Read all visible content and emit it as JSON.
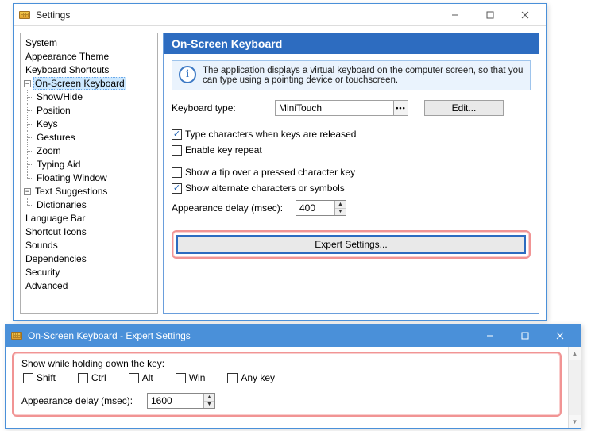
{
  "win1": {
    "title": "Settings",
    "tree": {
      "items": [
        {
          "label": "System",
          "expandable": false
        },
        {
          "label": "Appearance Theme",
          "expandable": false
        },
        {
          "label": "Keyboard Shortcuts",
          "expandable": false
        },
        {
          "label": "On-Screen Keyboard",
          "expandable": true,
          "expanded": true,
          "selected": true,
          "children": [
            {
              "label": "Show/Hide"
            },
            {
              "label": "Position"
            },
            {
              "label": "Keys"
            },
            {
              "label": "Gestures"
            },
            {
              "label": "Zoom"
            },
            {
              "label": "Typing Aid"
            },
            {
              "label": "Floating Window"
            }
          ]
        },
        {
          "label": "Text Suggestions",
          "expandable": true,
          "expanded": true,
          "children": [
            {
              "label": "Dictionaries"
            }
          ]
        },
        {
          "label": "Language Bar",
          "expandable": false
        },
        {
          "label": "Shortcut Icons",
          "expandable": false
        },
        {
          "label": "Sounds",
          "expandable": false
        },
        {
          "label": "Dependencies",
          "expandable": false
        },
        {
          "label": "Security",
          "expandable": false
        },
        {
          "label": "Advanced",
          "expandable": false
        }
      ]
    },
    "panel": {
      "header": "On-Screen Keyboard",
      "info": "The application displays a virtual keyboard on the computer screen, so that you can type using a pointing device or touchscreen.",
      "kbtype_label": "Keyboard type:",
      "kbtype_value": "MiniTouch",
      "edit_button": "Edit...",
      "chk_release": {
        "checked": true,
        "label": "Type characters when keys are released"
      },
      "chk_repeat": {
        "checked": false,
        "label": "Enable key repeat"
      },
      "chk_tip": {
        "checked": false,
        "label": "Show a tip over a pressed character key"
      },
      "chk_alt": {
        "checked": true,
        "label": "Show alternate characters or symbols"
      },
      "delay_label": "Appearance delay (msec):",
      "delay_value": "400",
      "expert_button": "Expert Settings..."
    }
  },
  "win2": {
    "title": "On-Screen Keyboard - Expert Settings",
    "group_label": "Show while holding down the key:",
    "keys": [
      {
        "label": "Shift",
        "checked": false
      },
      {
        "label": "Ctrl",
        "checked": false
      },
      {
        "label": "Alt",
        "checked": false
      },
      {
        "label": "Win",
        "checked": false
      },
      {
        "label": "Any key",
        "checked": false
      }
    ],
    "delay_label": "Appearance delay (msec):",
    "delay_value": "1600"
  },
  "colors": {
    "titlebar_blue": "#4a90d9",
    "panel_header": "#2d6cc0",
    "highlight_red": "rgba(230,60,60,0.55)",
    "info_bg": "#eaf3fd",
    "info_border": "#9ec4ec"
  }
}
